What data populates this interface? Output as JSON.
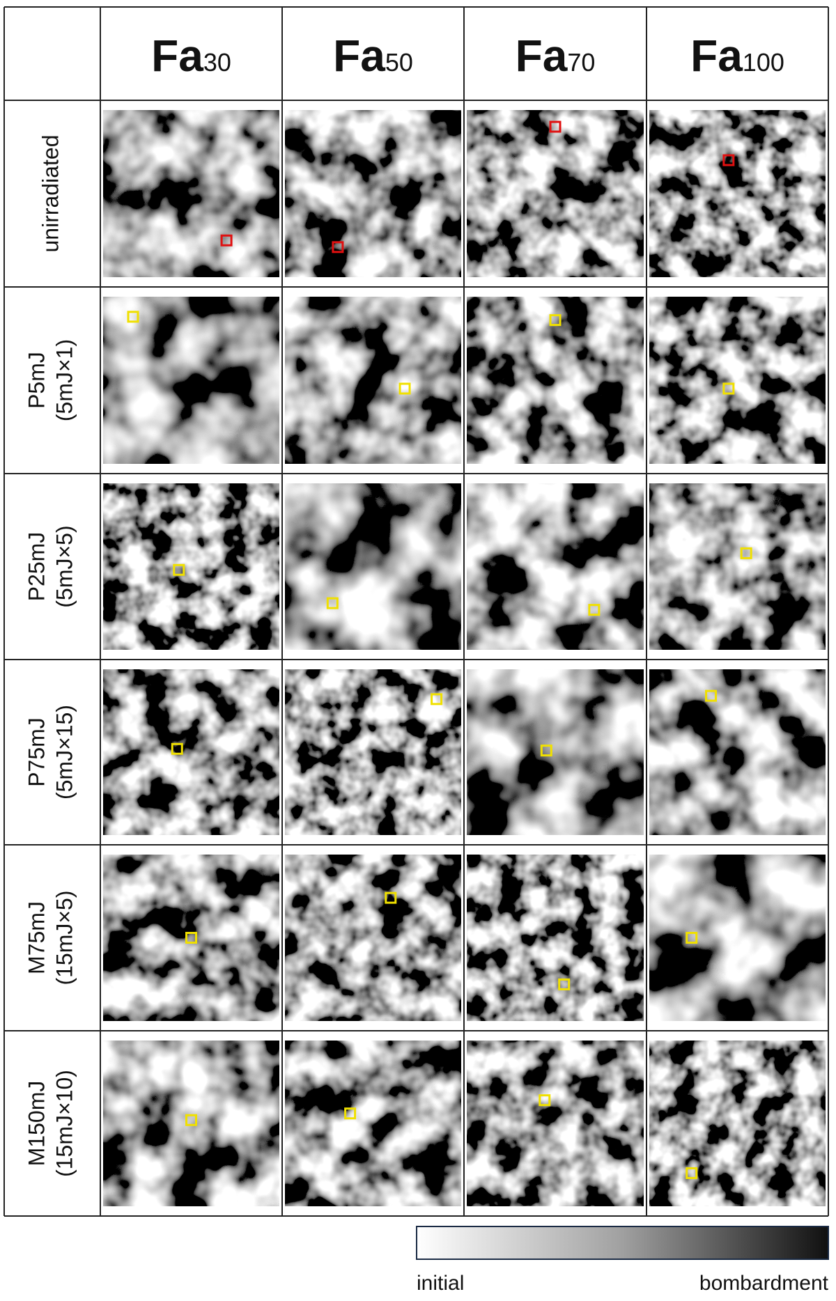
{
  "columns": [
    {
      "base": "Fa",
      "sub": "30"
    },
    {
      "base": "Fa",
      "sub": "50"
    },
    {
      "base": "Fa",
      "sub": "70"
    },
    {
      "base": "Fa",
      "sub": "100"
    }
  ],
  "rows": [
    {
      "lines": [
        "unirradiated"
      ]
    },
    {
      "lines": [
        "P5mJ",
        "(5mJ×1)"
      ]
    },
    {
      "lines": [
        "P25mJ",
        "(5mJ×5)"
      ]
    },
    {
      "lines": [
        "P75mJ",
        "(5mJ×15)"
      ]
    },
    {
      "lines": [
        "M75mJ",
        "(15mJ×5)"
      ]
    },
    {
      "lines": [
        "M150mJ",
        "(15mJ×10)"
      ]
    }
  ],
  "legend": {
    "left": "initial",
    "right": "bombardment"
  }
}
